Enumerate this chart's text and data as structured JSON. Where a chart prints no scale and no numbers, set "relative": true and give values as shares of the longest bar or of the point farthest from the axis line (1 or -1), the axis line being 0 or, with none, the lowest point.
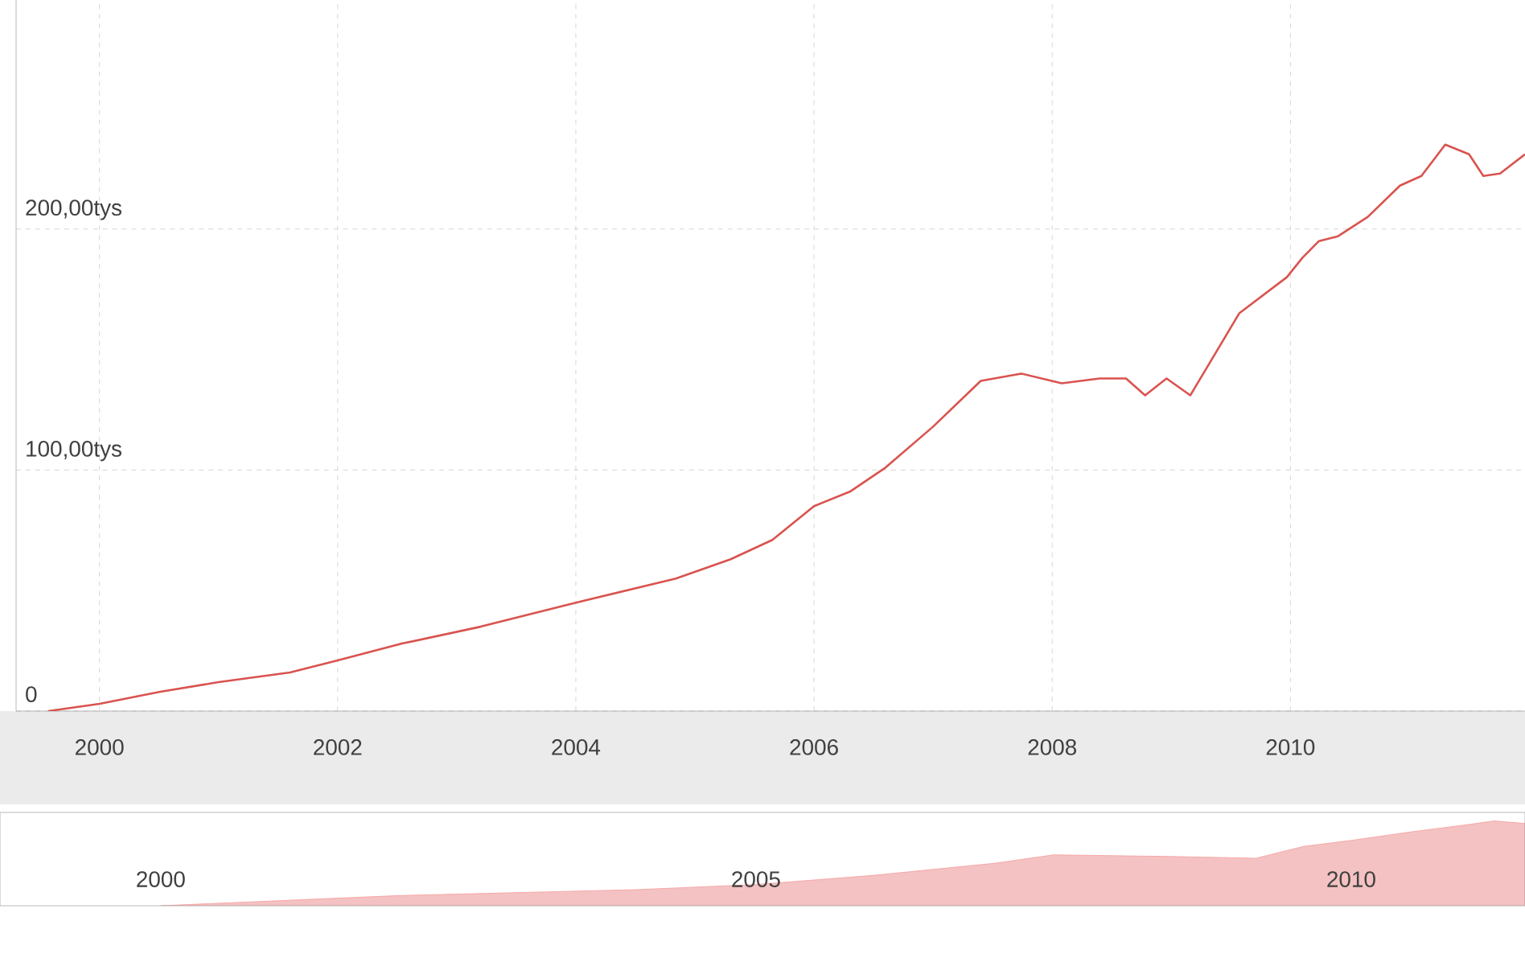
{
  "chart_data": [
    {
      "type": "line",
      "color": "#d9534f",
      "grid": true,
      "xlim": [
        1999.3,
        2011.97
      ],
      "ylim": [
        0,
        295
      ],
      "xticks": [
        2000,
        2002,
        2004,
        2006,
        2008,
        2010
      ],
      "yticks": [
        {
          "value": 0,
          "label": "0"
        },
        {
          "value": 100,
          "label": "100,00tys"
        },
        {
          "value": 200,
          "label": "200,00tys"
        }
      ],
      "x": [
        1999.57,
        2000.0,
        2000.51,
        2001.0,
        2001.6,
        2002.0,
        2002.54,
        2003.2,
        2004.0,
        2004.84,
        2005.3,
        2005.65,
        2006.0,
        2006.3,
        2006.6,
        2007.0,
        2007.4,
        2007.74,
        2008.08,
        2008.4,
        2008.62,
        2008.78,
        2008.96,
        2009.16,
        2009.57,
        2009.97,
        2010.1,
        2010.24,
        2010.4,
        2010.65,
        2010.92,
        2011.1,
        2011.3,
        2011.5,
        2011.62,
        2011.76,
        2011.97
      ],
      "values": [
        0,
        3,
        8,
        12,
        16,
        21,
        28,
        35,
        45,
        55,
        63,
        71,
        85,
        91,
        101,
        118,
        137,
        140,
        136,
        138,
        138,
        131,
        138,
        131,
        165,
        180,
        188,
        195,
        197,
        205,
        218,
        222,
        235,
        231,
        222,
        223,
        231
      ]
    },
    {
      "type": "area",
      "color": "#f4c2c2",
      "relative": true,
      "tick_labels": "x",
      "xlim": [
        1998.65,
        2011.46
      ],
      "xticks": [
        2000,
        2005,
        2010
      ],
      "x": [
        2000.0,
        2002.0,
        2004.0,
        2005.0,
        2006.0,
        2007.0,
        2007.5,
        2008.5,
        2009.2,
        2009.6,
        2010.0,
        2010.5,
        2011.0,
        2011.2,
        2011.46
      ],
      "values": [
        0,
        0.12,
        0.19,
        0.25,
        0.36,
        0.5,
        0.6,
        0.58,
        0.56,
        0.7,
        0.77,
        0.87,
        0.96,
        1,
        0.97
      ]
    }
  ]
}
